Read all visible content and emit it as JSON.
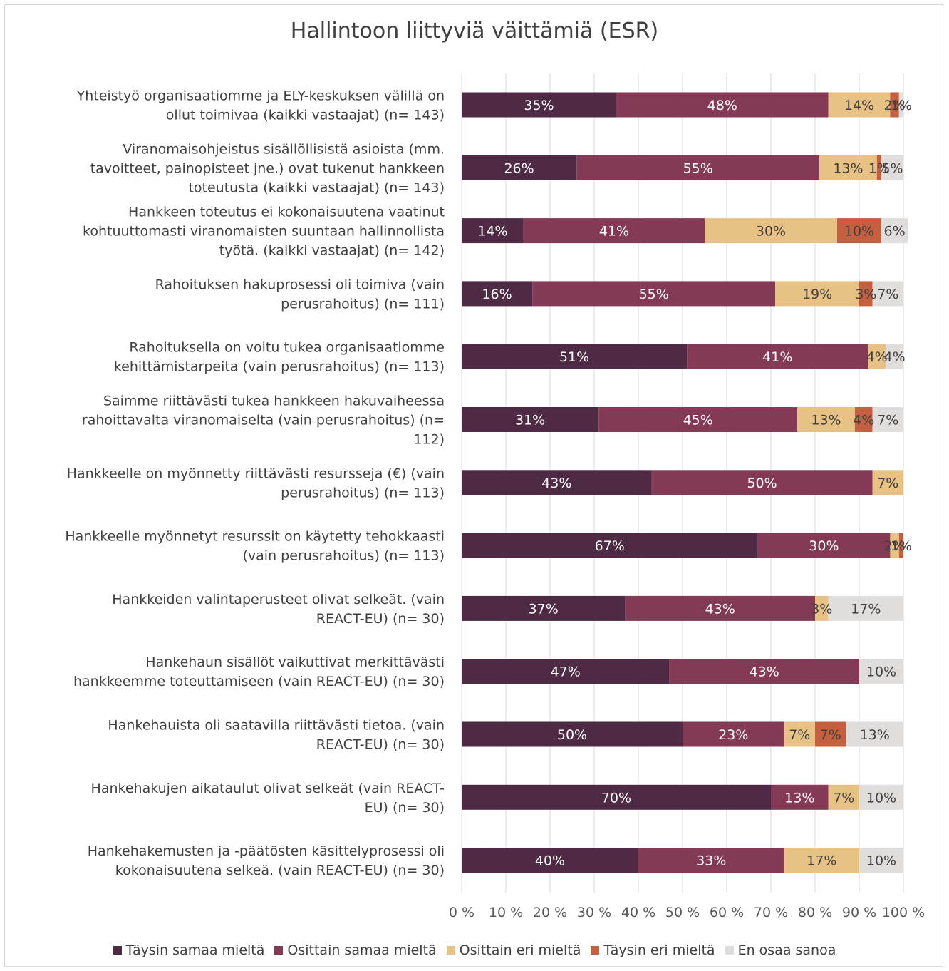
{
  "chart_data": {
    "type": "bar",
    "orientation": "horizontal",
    "stacked": "percent",
    "title": "Hallintoon liittyviä väittämiä (ESR)",
    "categories": [
      "Yhteistyö organisaatiomme ja ELY-keskuksen välillä on ollut toimivaa (kaikki vastaajat) (n= 143)",
      "Viranomaisohjeistus sisällöllisistä asioista (mm. tavoitteet, painopisteet jne.) ovat tukenut hankkeen toteutusta (kaikki vastaajat) (n= 143)",
      "Hankkeen toteutus ei kokonaisuutena vaatinut kohtuuttomasti viranomaisten suuntaan hallinnollista työtä. (kaikki vastaajat) (n= 142)",
      "Rahoituksen hakuprosessi oli toimiva (vain perusrahoitus) (n= 111)",
      "Rahoituksella on voitu tukea organisaatiomme kehittämistarpeita (vain perusrahoitus) (n= 113)",
      "Saimme riittävästi tukea hankkeen hakuvaiheessa rahoittavalta viranomaiselta (vain perusrahoitus) (n= 112)",
      "Hankkeelle on myönnetty riittävästi resursseja (€) (vain perusrahoitus) (n= 113)",
      "Hankkeelle myönnetyt resurssit on käytetty tehokkaasti (vain perusrahoitus) (n= 113)",
      "Hankkeiden valintaperusteet olivat selkeät. (vain REACT-EU)  (n= 30)",
      "Hankehaun sisällöt vaikuttivat merkittävästi hankkeemme toteuttamiseen (vain REACT-EU) (n= 30)",
      "Hankehauista oli saatavilla riittävästi tietoa. (vain REACT-EU)  (n= 30)",
      "Hankehakujen aikataulut olivat selkeät  (vain REACT-EU) (n= 30)",
      "Hankehakemusten ja -päätösten käsittelyprosessi oli kokonaisuutena selkeä. (vain REACT-EU)   (n= 30)"
    ],
    "category_lines": [
      [
        "Yhteistyö organisaatiomme ja ELY-keskuksen välillä on",
        "ollut toimivaa (kaikki vastaajat) (n= 143)"
      ],
      [
        "Viranomaisohjeistus sisällöllisistä asioista (mm.",
        "tavoitteet, painopisteet jne.) ovat tukenut hankkeen",
        "toteutusta (kaikki vastaajat) (n= 143)"
      ],
      [
        "Hankkeen toteutus ei kokonaisuutena vaatinut",
        "kohtuuttomasti viranomaisten suuntaan hallinnollista",
        "työtä. (kaikki vastaajat) (n= 142)"
      ],
      [
        "Rahoituksen hakuprosessi oli toimiva (vain",
        "perusrahoitus) (n= 111)"
      ],
      [
        "Rahoituksella on voitu tukea organisaatiomme",
        "kehittämistarpeita (vain perusrahoitus) (n= 113)"
      ],
      [
        "Saimme riittävästi tukea hankkeen hakuvaiheessa",
        "rahoittavalta viranomaiselta (vain perusrahoitus) (n=",
        "112)"
      ],
      [
        "Hankkeelle on myönnetty riittävästi resursseja (€) (vain",
        "perusrahoitus) (n= 113)"
      ],
      [
        "Hankkeelle myönnetyt resurssit on käytetty tehokkaasti",
        "(vain perusrahoitus) (n= 113)"
      ],
      [
        "Hankkeiden valintaperusteet olivat selkeät. (vain",
        "REACT-EU)  (n= 30)"
      ],
      [
        "Hankehaun sisällöt vaikuttivat merkittävästi",
        "hankkeemme toteuttamiseen (vain REACT-EU) (n= 30)"
      ],
      [
        "Hankehauista oli saatavilla riittävästi tietoa. (vain",
        "REACT-EU)  (n= 30)"
      ],
      [
        "Hankehakujen aikataulut olivat selkeät  (vain REACT-",
        "EU) (n= 30)"
      ],
      [
        "Hankehakemusten ja -päätösten käsittelyprosessi oli",
        "kokonaisuutena selkeä. (vain REACT-EU)   (n= 30)"
      ]
    ],
    "series": [
      {
        "name": "Täysin samaa mieltä",
        "color": "#4f2a44",
        "label_color": "#ffffff",
        "values": [
          35,
          26,
          14,
          16,
          51,
          31,
          43,
          67,
          37,
          47,
          50,
          70,
          40
        ]
      },
      {
        "name": "Osittain samaa mieltä",
        "color": "#843a57",
        "label_color": "#ffffff",
        "values": [
          48,
          55,
          41,
          55,
          41,
          45,
          50,
          30,
          43,
          43,
          23,
          13,
          33
        ]
      },
      {
        "name": "Osittain eri mieltä",
        "color": "#e8c285",
        "label_color": "#404040",
        "values": [
          14,
          13,
          30,
          19,
          4,
          13,
          7,
          2,
          3,
          0,
          7,
          7,
          17
        ]
      },
      {
        "name": "Täysin eri mieltä",
        "color": "#c4603f",
        "label_color": "#404040",
        "values": [
          2,
          1,
          10,
          3,
          0,
          4,
          0,
          1,
          0,
          0,
          7,
          0,
          0
        ]
      },
      {
        "name": "En osaa sanoa",
        "color": "#e0dedd",
        "label_color": "#404040",
        "values": [
          1,
          5,
          6,
          7,
          4,
          7,
          0,
          0,
          17,
          10,
          13,
          10,
          10
        ]
      }
    ],
    "xlim": [
      0,
      100
    ],
    "xticks": [
      "0 %",
      "10 %",
      "20 %",
      "30 %",
      "40 %",
      "50 %",
      "60 %",
      "70 %",
      "80 %",
      "90 %",
      "100 %"
    ],
    "grid": true,
    "legend_position": "bottom"
  }
}
